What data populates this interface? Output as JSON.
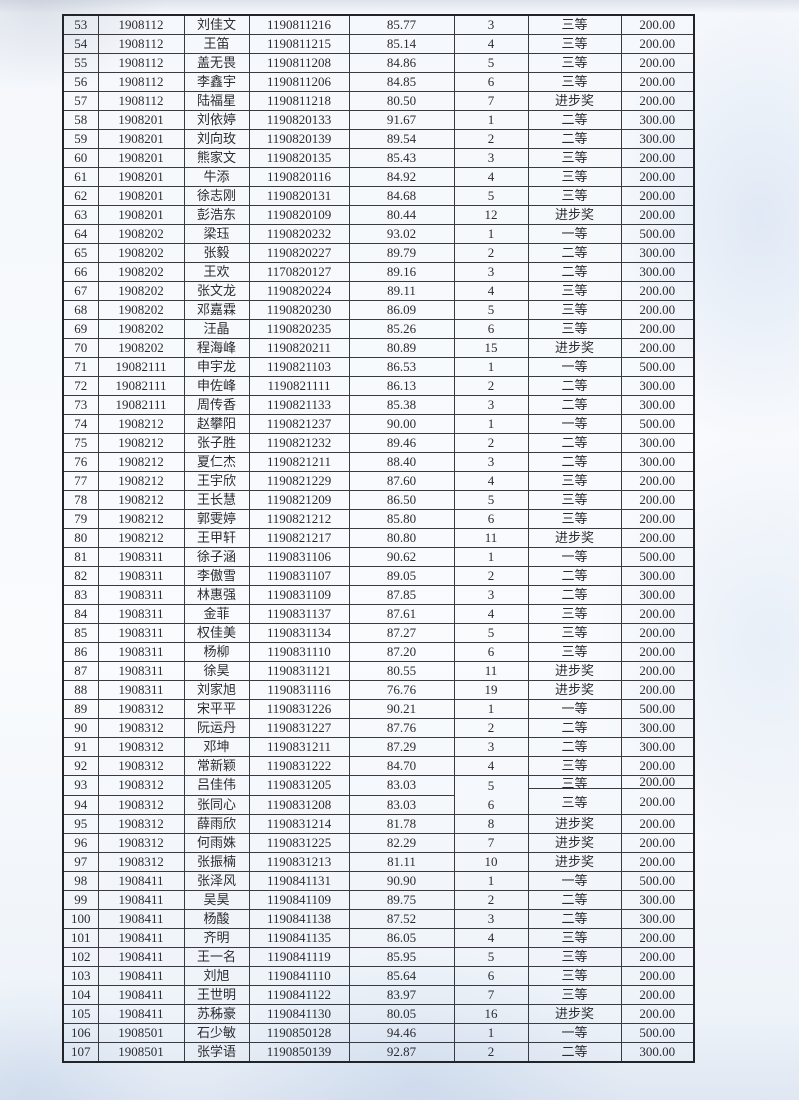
{
  "colors": {
    "ink": "#2b2c30",
    "table_line": "#3a3b40",
    "paper": "#f8fafc",
    "scan_tint": "#dfe7f2"
  },
  "table": {
    "fields": [
      "seq",
      "class",
      "name",
      "student_id",
      "score",
      "rank",
      "award",
      "amount"
    ],
    "rows": [
      [
        "53",
        "1908112",
        "刘佳文",
        "1190811216",
        "85.77",
        "3",
        "三等",
        "200.00"
      ],
      [
        "54",
        "1908112",
        "王笛",
        "1190811215",
        "85.14",
        "4",
        "三等",
        "200.00"
      ],
      [
        "55",
        "1908112",
        "盖无畏",
        "1190811208",
        "84.86",
        "5",
        "三等",
        "200.00"
      ],
      [
        "56",
        "1908112",
        "李鑫宇",
        "1190811206",
        "84.85",
        "6",
        "三等",
        "200.00"
      ],
      [
        "57",
        "1908112",
        "陆福星",
        "1190811218",
        "80.50",
        "7",
        "进步奖",
        "200.00"
      ],
      [
        "58",
        "1908201",
        "刘依婷",
        "1190820133",
        "91.67",
        "1",
        "二等",
        "300.00"
      ],
      [
        "59",
        "1908201",
        "刘向玫",
        "1190820139",
        "89.54",
        "2",
        "二等",
        "300.00"
      ],
      [
        "60",
        "1908201",
        "熊家文",
        "1190820135",
        "85.43",
        "3",
        "三等",
        "200.00"
      ],
      [
        "61",
        "1908201",
        "牛添",
        "1190820116",
        "84.92",
        "4",
        "三等",
        "200.00"
      ],
      [
        "62",
        "1908201",
        "徐志刚",
        "1190820131",
        "84.68",
        "5",
        "三等",
        "200.00"
      ],
      [
        "63",
        "1908201",
        "彭浩东",
        "1190820109",
        "80.44",
        "12",
        "进步奖",
        "200.00"
      ],
      [
        "64",
        "1908202",
        "梁珏",
        "1190820232",
        "93.02",
        "1",
        "一等",
        "500.00"
      ],
      [
        "65",
        "1908202",
        "张毅",
        "1190820227",
        "89.79",
        "2",
        "二等",
        "300.00"
      ],
      [
        "66",
        "1908202",
        "王欢",
        "1170820127",
        "89.16",
        "3",
        "二等",
        "300.00"
      ],
      [
        "67",
        "1908202",
        "张文龙",
        "1190820224",
        "89.11",
        "4",
        "三等",
        "200.00"
      ],
      [
        "68",
        "1908202",
        "邓嘉霖",
        "1190820230",
        "86.09",
        "5",
        "三等",
        "200.00"
      ],
      [
        "69",
        "1908202",
        "汪晶",
        "1190820235",
        "85.26",
        "6",
        "三等",
        "200.00"
      ],
      [
        "70",
        "1908202",
        "程海峰",
        "1190820211",
        "80.89",
        "15",
        "进步奖",
        "200.00"
      ],
      [
        "71",
        "19082111",
        "申宇龙",
        "1190821103",
        "86.53",
        "1",
        "一等",
        "500.00"
      ],
      [
        "72",
        "19082111",
        "申佐峰",
        "1190821111",
        "86.13",
        "2",
        "二等",
        "300.00"
      ],
      [
        "73",
        "19082111",
        "周传香",
        "1190821133",
        "85.38",
        "3",
        "二等",
        "300.00"
      ],
      [
        "74",
        "1908212",
        "赵攀阳",
        "1190821237",
        "90.00",
        "1",
        "一等",
        "500.00"
      ],
      [
        "75",
        "1908212",
        "张子胜",
        "1190821232",
        "89.46",
        "2",
        "二等",
        "300.00"
      ],
      [
        "76",
        "1908212",
        "夏仁杰",
        "1190821211",
        "88.40",
        "3",
        "二等",
        "300.00"
      ],
      [
        "77",
        "1908212",
        "王宇欣",
        "1190821229",
        "87.60",
        "4",
        "三等",
        "200.00"
      ],
      [
        "78",
        "1908212",
        "王长慧",
        "1190821209",
        "86.50",
        "5",
        "三等",
        "200.00"
      ],
      [
        "79",
        "1908212",
        "郭雯婷",
        "1190821212",
        "85.80",
        "6",
        "三等",
        "200.00"
      ],
      [
        "80",
        "1908212",
        "王甲轩",
        "1190821217",
        "80.80",
        "11",
        "进步奖",
        "200.00"
      ],
      [
        "81",
        "1908311",
        "徐子涵",
        "1190831106",
        "90.62",
        "1",
        "一等",
        "500.00"
      ],
      [
        "82",
        "1908311",
        "李傲雪",
        "1190831107",
        "89.05",
        "2",
        "二等",
        "300.00"
      ],
      [
        "83",
        "1908311",
        "林惠强",
        "1190831109",
        "87.85",
        "3",
        "二等",
        "300.00"
      ],
      [
        "84",
        "1908311",
        "金菲",
        "1190831137",
        "87.61",
        "4",
        "三等",
        "200.00"
      ],
      [
        "85",
        "1908311",
        "权佳美",
        "1190831134",
        "87.27",
        "5",
        "三等",
        "200.00"
      ],
      [
        "86",
        "1908311",
        "杨柳",
        "1190831110",
        "87.20",
        "6",
        "三等",
        "200.00"
      ],
      [
        "87",
        "1908311",
        "徐昊",
        "1190831121",
        "80.55",
        "11",
        "进步奖",
        "200.00"
      ],
      [
        "88",
        "1908311",
        "刘家旭",
        "1190831116",
        "76.76",
        "19",
        "进步奖",
        "200.00"
      ],
      [
        "89",
        "1908312",
        "宋平平",
        "1190831226",
        "90.21",
        "1",
        "一等",
        "500.00"
      ],
      [
        "90",
        "1908312",
        "阮运丹",
        "1190831227",
        "87.76",
        "2",
        "二等",
        "300.00"
      ],
      [
        "91",
        "1908312",
        "邓坤",
        "1190831211",
        "87.29",
        "3",
        "二等",
        "300.00"
      ],
      [
        "92",
        "1908312",
        "常新颖",
        "1190831222",
        "84.70",
        "4",
        "三等",
        "200.00"
      ],
      [
        "93",
        "1908312",
        "吕佳伟",
        "1190831205",
        "83.03",
        "5",
        "三等",
        "200.00"
      ],
      [
        "94",
        "1908312",
        "张同心",
        "1190831208",
        "83.03",
        "6",
        "三等",
        "200.00"
      ],
      [
        "95",
        "1908312",
        "薛雨欣",
        "1190831214",
        "81.78",
        "8",
        "进步奖",
        "200.00"
      ],
      [
        "96",
        "1908312",
        "何雨姝",
        "1190831225",
        "82.29",
        "7",
        "进步奖",
        "200.00"
      ],
      [
        "97",
        "1908312",
        "张振楠",
        "1190831213",
        "81.11",
        "10",
        "进步奖",
        "200.00"
      ],
      [
        "98",
        "1908411",
        "张泽风",
        "1190841131",
        "90.90",
        "1",
        "一等",
        "500.00"
      ],
      [
        "99",
        "1908411",
        "吴昊",
        "1190841109",
        "89.75",
        "2",
        "二等",
        "300.00"
      ],
      [
        "100",
        "1908411",
        "杨酸",
        "1190841138",
        "87.52",
        "3",
        "二等",
        "300.00"
      ],
      [
        "101",
        "1908411",
        "齐明",
        "1190841135",
        "86.05",
        "4",
        "三等",
        "200.00"
      ],
      [
        "102",
        "1908411",
        "王一名",
        "1190841119",
        "85.95",
        "5",
        "三等",
        "200.00"
      ],
      [
        "103",
        "1908411",
        "刘旭",
        "1190841110",
        "85.64",
        "6",
        "三等",
        "200.00"
      ],
      [
        "104",
        "1908411",
        "王世明",
        "1190841122",
        "83.97",
        "7",
        "三等",
        "200.00"
      ],
      [
        "105",
        "1908411",
        "苏秭豪",
        "1190841130",
        "80.05",
        "16",
        "进步奖",
        "200.00"
      ],
      [
        "106",
        "1908501",
        "石少敏",
        "1190850128",
        "94.46",
        "1",
        "一等",
        "500.00"
      ],
      [
        "107",
        "1908501",
        "张学语",
        "1190850139",
        "92.87",
        "2",
        "二等",
        "300.00"
      ]
    ]
  }
}
